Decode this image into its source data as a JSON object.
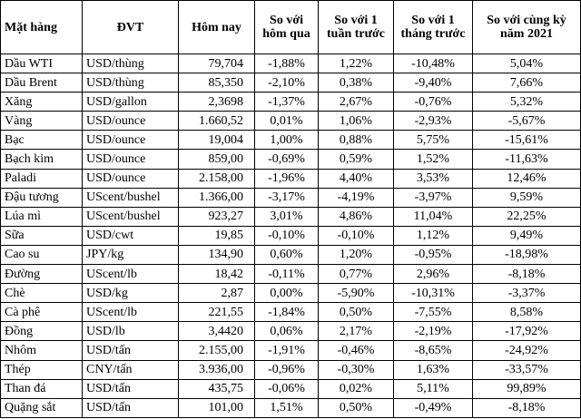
{
  "table": {
    "header": [
      "Mặt hàng",
      "ĐVT",
      "Hôm nay",
      "So với hôm qua",
      "So với 1 tuần trước",
      "So với 1 tháng trước",
      "So với cùng kỳ năm 2021"
    ],
    "rows": [
      [
        "Dầu WTI",
        "USD/thùng",
        "79,704",
        "-1,88%",
        "1,22%",
        "-10,48%",
        "5,04%"
      ],
      [
        "Dầu Brent",
        "USD/thùng",
        "85,350",
        "-2,10%",
        "0,38%",
        "-9,40%",
        "7,66%"
      ],
      [
        "Xăng",
        "USD/gallon",
        "2,3698",
        "-1,37%",
        "2,67%",
        "-0,76%",
        "5,32%"
      ],
      [
        "Vàng",
        "USD/ounce",
        "1.660,52",
        "0,01%",
        "1,06%",
        "-2,93%",
        "-5,67%"
      ],
      [
        "Bạc",
        "USD/ounce",
        "19,004",
        "1,00%",
        "0,88%",
        "5,75%",
        "-15,61%"
      ],
      [
        "Bạch kim",
        "USD/ounce",
        "859,00",
        "-0,69%",
        "0,59%",
        "1,52%",
        "-11,63%"
      ],
      [
        "Paladi",
        "USD/ounce",
        "2.158,00",
        "-1,96%",
        "4,40%",
        "3,53%",
        "12,46%"
      ],
      [
        "Đậu tương",
        "UScent/bushel",
        "1.366,00",
        "-3,17%",
        "-4,19%",
        "-3,97%",
        "9,59%"
      ],
      [
        "Lúa mì",
        "UScent/bushel",
        "923,27",
        "3,01%",
        "4,86%",
        "11,04%",
        "22,25%"
      ],
      [
        "Sữa",
        "USD/cwt",
        "19,85",
        "-0,10%",
        "-0,10%",
        "1,12%",
        "9,49%"
      ],
      [
        "Cao su",
        "JPY/kg",
        "134,90",
        "0,60%",
        "1,20%",
        "-0,95%",
        "-18,98%"
      ],
      [
        "Đường",
        "UScent/lb",
        "18,42",
        "-0,11%",
        "0,77%",
        "2,96%",
        "-8,18%"
      ],
      [
        "Chè",
        "USD/kg",
        "2,87",
        "0,00%",
        "-5,90%",
        "-10,31%",
        "-3,37%"
      ],
      [
        "Cà phê",
        "UScent/lb",
        "221,55",
        "-1,84%",
        "0,50%",
        "-7,55%",
        "8,58%"
      ],
      [
        "Đồng",
        "USD/lb",
        "3,4420",
        "0,06%",
        "2,17%",
        "-2,19%",
        "-17,92%"
      ],
      [
        "Nhôm",
        "USD/tấn",
        "2.155,00",
        "-1,91%",
        "-0,46%",
        "-8,65%",
        "-24,92%"
      ],
      [
        "Thép",
        "CNY/tấn",
        "3.936,00",
        "-0,96%",
        "-0,30%",
        "1,63%",
        "-33,57%"
      ],
      [
        "Than đá",
        "USD/tấn",
        "435,75",
        "-0,06%",
        "0,02%",
        "5,11%",
        "99,89%"
      ],
      [
        "Quặng sắt",
        "USD/tấn",
        "101,00",
        "1,51%",
        "0,50%",
        "-0,49%",
        "-8,18%"
      ]
    ]
  }
}
